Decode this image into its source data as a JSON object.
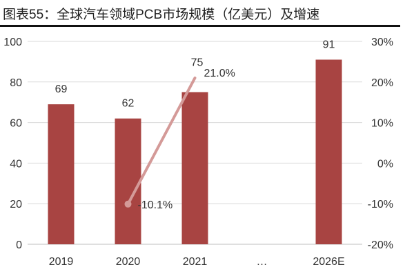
{
  "chart_data": {
    "type": "bar+line",
    "title": "图表55：全球汽车领域PCB市场规模（亿美元）及增速",
    "categories": [
      "2019",
      "2020",
      "2021",
      "…",
      "2026E"
    ],
    "series": [
      {
        "type": "bar",
        "axis": "left",
        "values": [
          69,
          62,
          75,
          null,
          91
        ],
        "labels": [
          "69",
          "62",
          "75",
          "",
          "91"
        ],
        "color": "#A84442"
      },
      {
        "type": "line",
        "axis": "right",
        "values": [
          null,
          -10.1,
          21.0,
          null,
          null
        ],
        "labels": [
          "",
          "-10.1%",
          "21.0%",
          "",
          ""
        ],
        "color": "#D49A98"
      }
    ],
    "y_left": {
      "lim": [
        0,
        100
      ],
      "ticks": [
        "0",
        "20",
        "40",
        "60",
        "80",
        "100"
      ]
    },
    "y_right": {
      "lim": [
        -20,
        30
      ],
      "ticks": [
        "-20%",
        "-10%",
        "0%",
        "10%",
        "20%",
        "30%"
      ]
    },
    "grid": true,
    "legend": "none"
  }
}
